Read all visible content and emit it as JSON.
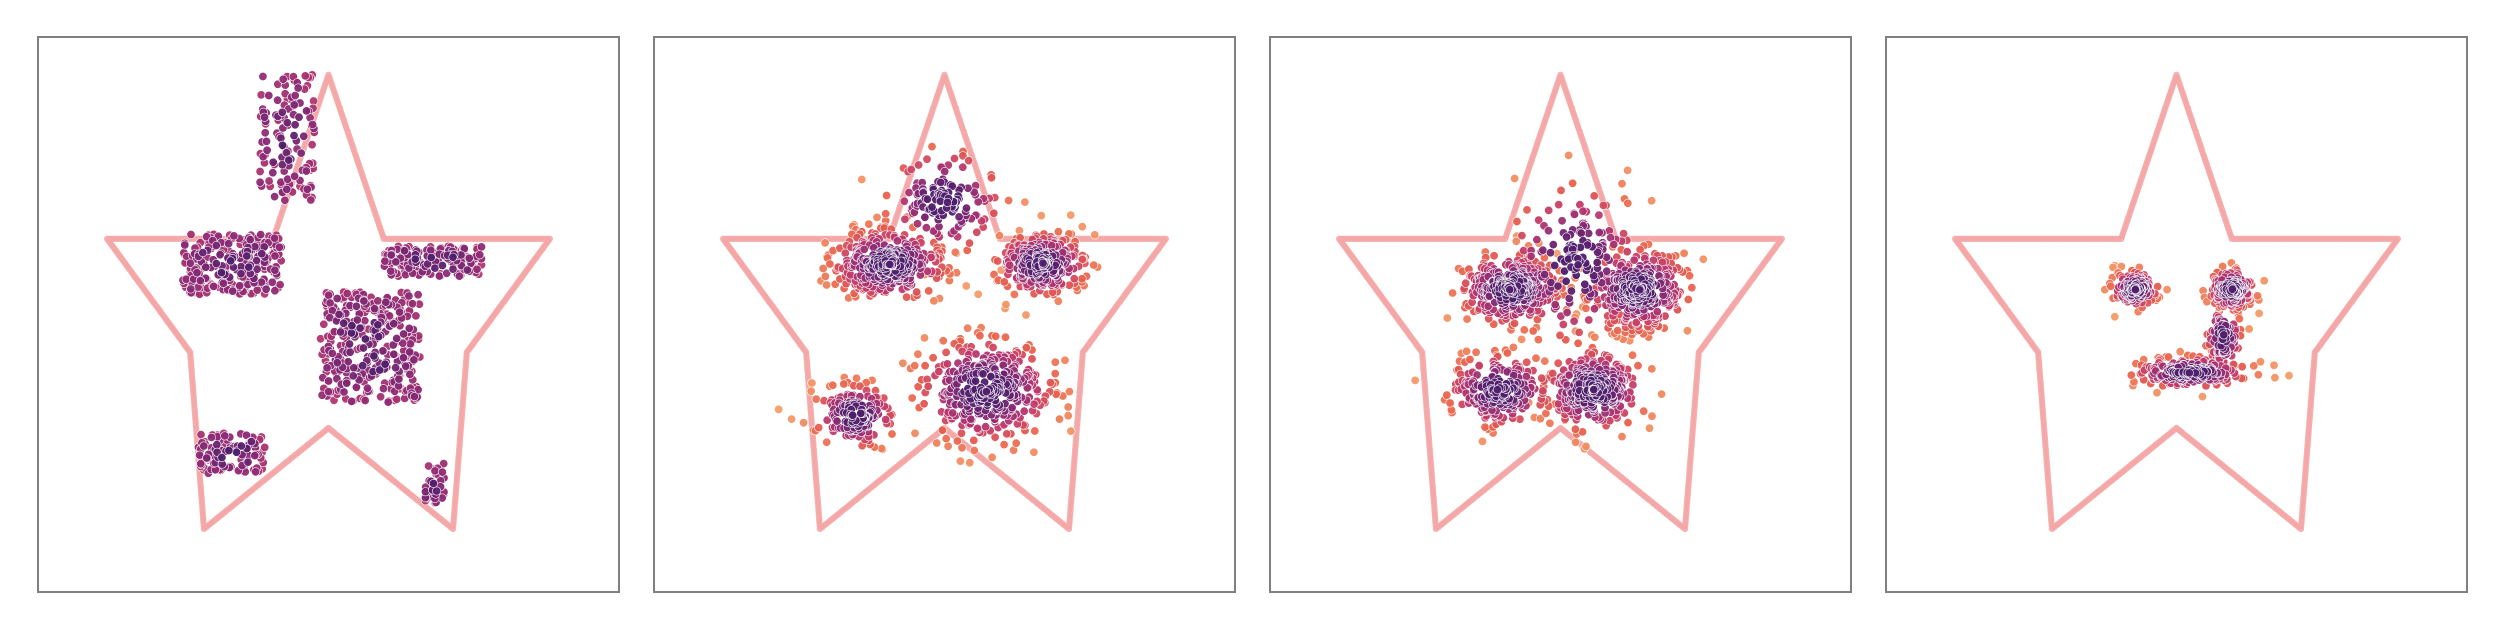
{
  "chart_data": [
    {
      "type": "scatter",
      "title": "",
      "xlabel": "",
      "ylabel": "",
      "xlim": [
        -1.05,
        1.05
      ],
      "ylim": [
        -1.25,
        0.95
      ],
      "grid": false,
      "star_outline": {
        "outer_radius": 0.8,
        "inner_radius": 0.35,
        "points": [
          [
            0,
            0.8
          ],
          [
            -0.2,
            0.15
          ],
          [
            -0.8,
            0.15
          ],
          [
            -0.5,
            -0.3
          ],
          [
            -0.45,
            -1.0
          ],
          [
            0,
            -0.6
          ],
          [
            0.45,
            -1.0
          ],
          [
            0.5,
            -0.3
          ],
          [
            0.8,
            0.15
          ],
          [
            0.2,
            0.15
          ]
        ],
        "color": "#f4a6a6"
      },
      "density_cmap": [
        "#f4a06a",
        "#e9604c",
        "#c0396b",
        "#8c2a75",
        "#4e1d6b"
      ],
      "clusters": [
        {
          "cx": -0.15,
          "cy": 0.55,
          "w": 0.1,
          "h": 0.25,
          "n": 120,
          "shape": "block"
        },
        {
          "cx": -0.35,
          "cy": 0.05,
          "w": 0.18,
          "h": 0.12,
          "n": 260,
          "shape": "block"
        },
        {
          "cx": 0.15,
          "cy": -0.28,
          "w": 0.18,
          "h": 0.22,
          "n": 330,
          "shape": "block"
        },
        {
          "cx": 0.38,
          "cy": 0.06,
          "w": 0.18,
          "h": 0.06,
          "n": 160,
          "shape": "block"
        },
        {
          "cx": -0.35,
          "cy": -0.7,
          "w": 0.12,
          "h": 0.08,
          "n": 110,
          "shape": "block"
        },
        {
          "cx": 0.38,
          "cy": -0.82,
          "w": 0.04,
          "h": 0.08,
          "n": 40,
          "shape": "block"
        }
      ]
    },
    {
      "type": "scatter",
      "title": "",
      "xlabel": "",
      "ylabel": "",
      "xlim": [
        -1.05,
        1.05
      ],
      "ylim": [
        -1.25,
        0.95
      ],
      "grid": false,
      "star_outline": {
        "outer_radius": 0.8,
        "inner_radius": 0.35,
        "points": [
          [
            0,
            0.8
          ],
          [
            -0.2,
            0.15
          ],
          [
            -0.8,
            0.15
          ],
          [
            -0.5,
            -0.3
          ],
          [
            -0.45,
            -1.0
          ],
          [
            0,
            -0.6
          ],
          [
            0.45,
            -1.0
          ],
          [
            0.5,
            -0.3
          ],
          [
            0.8,
            0.15
          ],
          [
            0.2,
            0.15
          ]
        ],
        "color": "#f4a6a6"
      },
      "density_cmap": [
        "#f4a06a",
        "#e9604c",
        "#c0396b",
        "#8c2a75",
        "#4e1d6b"
      ],
      "clusters": [
        {
          "cx": -0.2,
          "cy": 0.05,
          "w": 0.1,
          "h": 0.07,
          "n": 340,
          "shape": "gauss"
        },
        {
          "cx": 0.35,
          "cy": 0.05,
          "w": 0.08,
          "h": 0.06,
          "n": 260,
          "shape": "gauss"
        },
        {
          "cx": 0.15,
          "cy": -0.45,
          "w": 0.12,
          "h": 0.1,
          "n": 360,
          "shape": "gauss"
        },
        {
          "cx": -0.32,
          "cy": -0.55,
          "w": 0.07,
          "h": 0.06,
          "n": 160,
          "shape": "gauss"
        },
        {
          "cx": 0.0,
          "cy": 0.3,
          "w": 0.1,
          "h": 0.1,
          "n": 140,
          "shape": "gauss"
        }
      ]
    },
    {
      "type": "scatter",
      "title": "",
      "xlabel": "",
      "ylabel": "",
      "xlim": [
        -1.05,
        1.05
      ],
      "ylim": [
        -1.25,
        0.95
      ],
      "grid": false,
      "star_outline": {
        "outer_radius": 0.8,
        "inner_radius": 0.35,
        "points": [
          [
            0,
            0.8
          ],
          [
            -0.2,
            0.15
          ],
          [
            -0.8,
            0.15
          ],
          [
            -0.5,
            -0.3
          ],
          [
            -0.45,
            -1.0
          ],
          [
            0,
            -0.6
          ],
          [
            0.45,
            -1.0
          ],
          [
            0.5,
            -0.3
          ],
          [
            0.8,
            0.15
          ],
          [
            0.2,
            0.15
          ]
        ],
        "color": "#f4a6a6"
      },
      "density_cmap": [
        "#f4a06a",
        "#e9604c",
        "#c0396b",
        "#8c2a75",
        "#4e1d6b"
      ],
      "clusters": [
        {
          "cx": -0.18,
          "cy": -0.05,
          "w": 0.09,
          "h": 0.07,
          "n": 320,
          "shape": "gauss"
        },
        {
          "cx": 0.28,
          "cy": -0.05,
          "w": 0.09,
          "h": 0.08,
          "n": 320,
          "shape": "gauss"
        },
        {
          "cx": 0.12,
          "cy": -0.45,
          "w": 0.09,
          "h": 0.08,
          "n": 280,
          "shape": "gauss"
        },
        {
          "cx": -0.22,
          "cy": -0.45,
          "w": 0.09,
          "h": 0.07,
          "n": 220,
          "shape": "gauss"
        },
        {
          "cx": 0.05,
          "cy": 0.05,
          "w": 0.12,
          "h": 0.15,
          "n": 180,
          "shape": "gauss"
        }
      ]
    },
    {
      "type": "scatter",
      "title": "",
      "xlabel": "",
      "ylabel": "",
      "xlim": [
        -1.05,
        1.05
      ],
      "ylim": [
        -1.25,
        0.95
      ],
      "grid": false,
      "star_outline": {
        "outer_radius": 0.8,
        "inner_radius": 0.35,
        "points": [
          [
            0,
            0.8
          ],
          [
            -0.2,
            0.15
          ],
          [
            -0.8,
            0.15
          ],
          [
            -0.5,
            -0.3
          ],
          [
            -0.45,
            -1.0
          ],
          [
            0,
            -0.6
          ],
          [
            0.45,
            -1.0
          ],
          [
            0.5,
            -0.3
          ],
          [
            0.8,
            0.15
          ],
          [
            0.2,
            0.15
          ]
        ],
        "color": "#f4a6a6"
      },
      "density_cmap": [
        "#f4a06a",
        "#e9604c",
        "#c0396b",
        "#8c2a75",
        "#4e1d6b"
      ],
      "clusters": [
        {
          "cx": -0.15,
          "cy": -0.05,
          "w": 0.04,
          "h": 0.035,
          "n": 150,
          "shape": "gauss"
        },
        {
          "cx": 0.2,
          "cy": -0.05,
          "w": 0.04,
          "h": 0.04,
          "n": 180,
          "shape": "gauss"
        },
        {
          "cx": 0.05,
          "cy": -0.38,
          "w": 0.1,
          "h": 0.03,
          "n": 200,
          "shape": "gauss"
        },
        {
          "cx": 0.17,
          "cy": -0.24,
          "w": 0.03,
          "h": 0.06,
          "n": 90,
          "shape": "gauss"
        }
      ]
    }
  ]
}
